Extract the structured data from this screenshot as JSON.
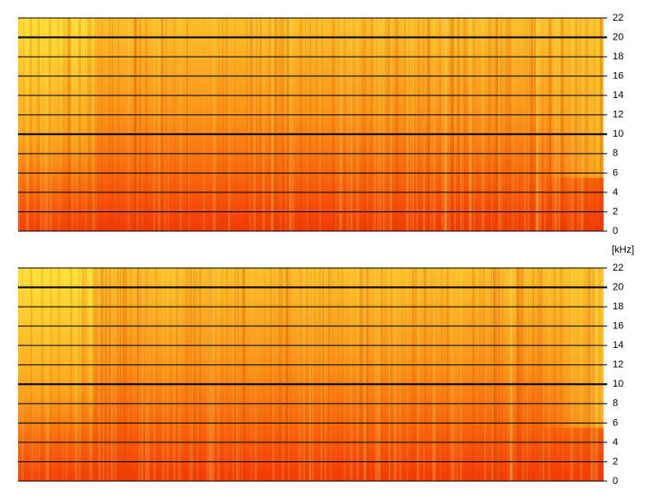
{
  "chart_data": [
    {
      "type": "spectrogram",
      "ylabel": "[kHz]",
      "ylim": [
        0,
        22
      ],
      "yticks": [
        0,
        2,
        4,
        6,
        8,
        10,
        12,
        14,
        16,
        18,
        20,
        22
      ],
      "bold_grid": [
        10,
        20
      ],
      "grid": true
    },
    {
      "type": "spectrogram",
      "ylim": [
        0,
        22
      ],
      "yticks": [
        0,
        2,
        4,
        6,
        8,
        10,
        12,
        14,
        16,
        18,
        20,
        22
      ],
      "bold_grid": [
        10,
        20
      ],
      "grid": true
    }
  ]
}
